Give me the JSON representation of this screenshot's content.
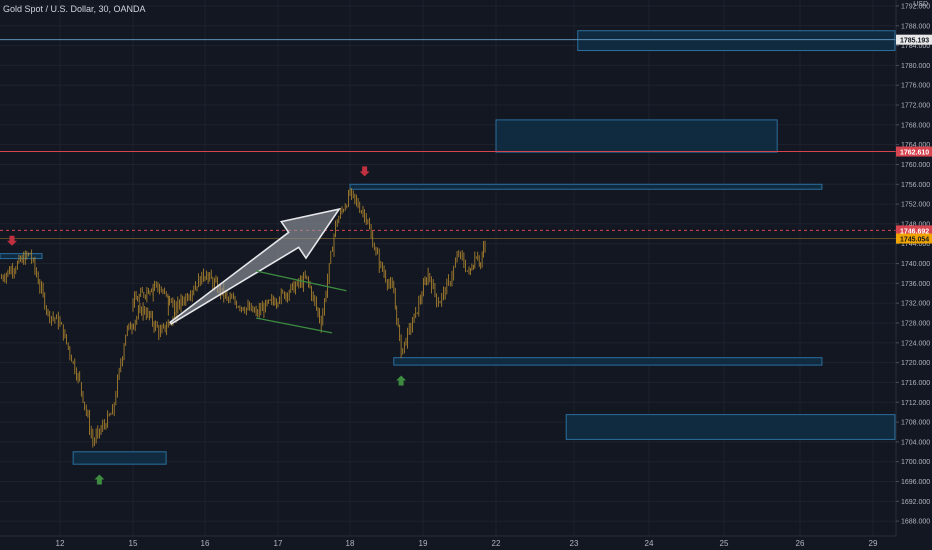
{
  "header": {
    "symbol_label": "Gold Spot / U.S. Dollar, 30, OANDA"
  },
  "axis": {
    "currency": "USD"
  },
  "colors": {
    "background": "#131722",
    "grid": "#1e222d",
    "candle": "#b58a2e",
    "zone_fill": "#102a40",
    "zone_stroke": "#2b6f9e",
    "resistance_line": "#d64550",
    "upper_line": "#5d8fb5",
    "tag_red": "#d64550",
    "tag_orange": "#f0a400",
    "tag_white": "#e8e8e8",
    "arrow_down": "#c0303e",
    "arrow_up": "#3d8c40",
    "channel": "#3d8c40",
    "big_arrow": "#9a9ea6"
  },
  "chart_data": {
    "type": "candlestick",
    "title": "Gold Spot / U.S. Dollar, 30, OANDA",
    "y_range": [
      1685,
      1793
    ],
    "y_ticks": [
      1688,
      1692,
      1696,
      1700,
      1704,
      1708,
      1712,
      1716,
      1720,
      1724,
      1728,
      1732,
      1736,
      1740,
      1744,
      1748,
      1752,
      1756,
      1760,
      1764,
      1768,
      1772,
      1776,
      1780,
      1784,
      1788,
      1792
    ],
    "x_ticks": [
      "12",
      "15",
      "16",
      "17",
      "18",
      "19",
      "22",
      "23",
      "24",
      "25",
      "26",
      "29"
    ],
    "series_path": [
      [
        11.0,
        1737
      ],
      [
        11.5,
        1742
      ],
      [
        11.8,
        1730
      ],
      [
        12.0,
        1728
      ],
      [
        12.3,
        1716
      ],
      [
        12.5,
        1704
      ],
      [
        12.8,
        1710
      ],
      [
        13.0,
        1726
      ],
      [
        13.3,
        1731
      ],
      [
        13.6,
        1726
      ],
      [
        13.9,
        1730
      ],
      [
        14.3,
        1734
      ],
      [
        14.6,
        1733
      ],
      [
        15.0,
        1732
      ],
      [
        15.3,
        1736
      ],
      [
        15.6,
        1731
      ],
      [
        16.0,
        1738
      ],
      [
        16.3,
        1733
      ],
      [
        16.7,
        1730
      ],
      [
        17.0,
        1733
      ],
      [
        17.4,
        1737
      ],
      [
        17.6,
        1728
      ],
      [
        17.8,
        1748
      ],
      [
        18.0,
        1754
      ],
      [
        18.2,
        1750
      ],
      [
        18.4,
        1740
      ],
      [
        18.6,
        1734
      ],
      [
        18.7,
        1722
      ],
      [
        18.9,
        1730
      ],
      [
        19.1,
        1738
      ],
      [
        19.3,
        1732
      ],
      [
        19.5,
        1736
      ],
      [
        19.7,
        1742
      ],
      [
        19.9,
        1738
      ],
      [
        20.1,
        1742
      ],
      [
        20.3,
        1740
      ],
      [
        20.5,
        1744
      ]
    ],
    "price_levels": [
      {
        "label": "1785.193",
        "value": 1785.193,
        "style": "upper"
      },
      {
        "label": "1762.610",
        "value": 1762.61,
        "style": "resistance"
      },
      {
        "label": "1746.692",
        "value": 1746.692,
        "style": "current"
      },
      {
        "label": "1745.054",
        "value": 1745.054,
        "style": "prev"
      }
    ],
    "zones": [
      {
        "x": [
          23.05,
          29.3
        ],
        "y": [
          1783,
          1787
        ]
      },
      {
        "x": [
          21.45,
          25.7
        ],
        "y": [
          1762.5,
          1769
        ]
      },
      {
        "x": [
          18.0,
          26.3
        ],
        "y": [
          1755,
          1756
        ]
      },
      {
        "x": [
          11.0,
          11.7
        ],
        "y": [
          1741,
          1742
        ]
      },
      {
        "x": [
          18.6,
          26.3
        ],
        "y": [
          1719.5,
          1721
        ]
      },
      {
        "x": [
          12.2,
          13.7
        ],
        "y": [
          1699.5,
          1702
        ]
      },
      {
        "x": [
          22.9,
          29.3
        ],
        "y": [
          1704.5,
          1709.5
        ]
      }
    ],
    "markers": [
      {
        "kind": "down",
        "x": 11.2,
        "y": 1744
      },
      {
        "kind": "down",
        "x": 18.2,
        "y": 1758
      },
      {
        "kind": "up",
        "x": 12.6,
        "y": 1697
      },
      {
        "kind": "up",
        "x": 18.7,
        "y": 1717
      }
    ],
    "annotations": {
      "arrow_from": [
        14.25,
        1728
      ],
      "arrow_to": [
        17.85,
        1751
      ],
      "channel_upper": [
        [
          16.7,
          1738.5
        ],
        [
          17.95,
          1734.5
        ]
      ],
      "channel_lower": [
        [
          16.7,
          1729
        ],
        [
          17.75,
          1726
        ]
      ]
    }
  }
}
